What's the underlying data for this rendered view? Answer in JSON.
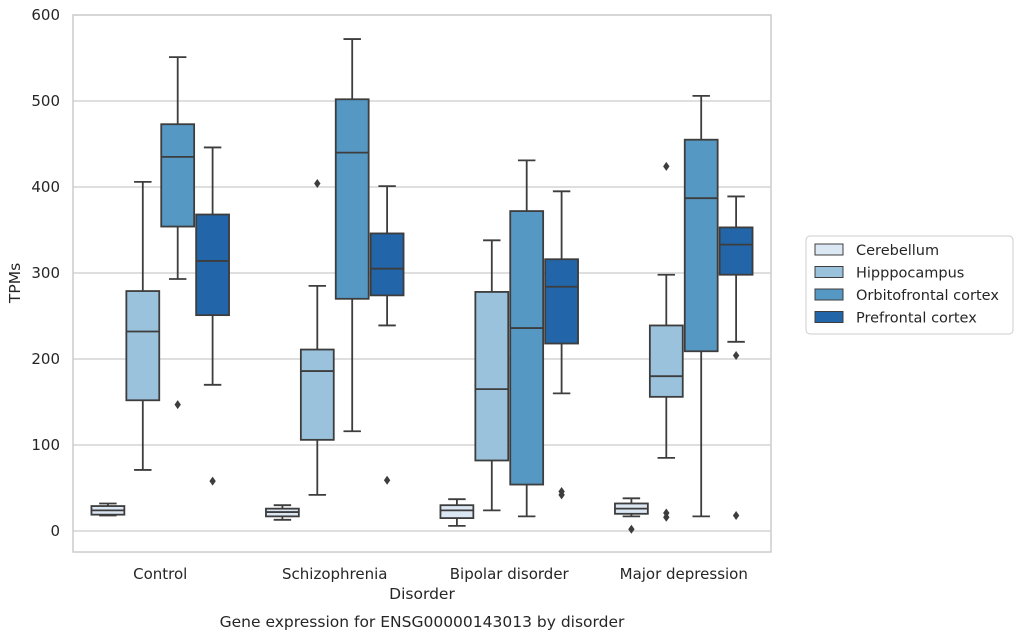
{
  "chart_data": {
    "type": "box",
    "title": "",
    "caption": "Gene expression for ENSG00000143013 by disorder",
    "xlabel": "Disorder",
    "ylabel": "TPMs",
    "ylim": [
      -25,
      600
    ],
    "yticks": [
      0,
      100,
      200,
      300,
      400,
      500,
      600
    ],
    "grid": true,
    "legend_position": "right",
    "categories": [
      "Control",
      "Schizophrenia",
      "Bipolar disorder",
      "Major depression"
    ],
    "series": [
      {
        "name": "Cerebellum",
        "color": "#dbe7f3",
        "boxes": [
          {
            "whisker_low": 18,
            "q1": 19,
            "median": 24,
            "q3": 29,
            "whisker_high": 32,
            "outliers": []
          },
          {
            "whisker_low": 13,
            "q1": 17,
            "median": 22,
            "q3": 26,
            "whisker_high": 30,
            "outliers": []
          },
          {
            "whisker_low": 6,
            "q1": 15,
            "median": 24,
            "q3": 30,
            "whisker_high": 37,
            "outliers": []
          },
          {
            "whisker_low": 17,
            "q1": 20,
            "median": 26,
            "q3": 32,
            "whisker_high": 38,
            "outliers": [
              2
            ]
          }
        ]
      },
      {
        "name": "Hipppocampus",
        "color": "#9ac2dc",
        "boxes": [
          {
            "whisker_low": 71,
            "q1": 152,
            "median": 232,
            "q3": 279,
            "whisker_high": 406,
            "outliers": []
          },
          {
            "whisker_low": 42,
            "q1": 106,
            "median": 186,
            "q3": 211,
            "whisker_high": 285,
            "outliers": [
              404
            ]
          },
          {
            "whisker_low": 24,
            "q1": 82,
            "median": 165,
            "q3": 278,
            "whisker_high": 338,
            "outliers": []
          },
          {
            "whisker_low": 85,
            "q1": 156,
            "median": 180,
            "q3": 239,
            "whisker_high": 298,
            "outliers": [
              16,
              21,
              424
            ]
          }
        ]
      },
      {
        "name": "Orbitofrontal cortex",
        "color": "#5698c4",
        "boxes": [
          {
            "whisker_low": 293,
            "q1": 354,
            "median": 435,
            "q3": 473,
            "whisker_high": 551,
            "outliers": [
              147
            ]
          },
          {
            "whisker_low": 116,
            "q1": 270,
            "median": 440,
            "q3": 502,
            "whisker_high": 572,
            "outliers": []
          },
          {
            "whisker_low": 17,
            "q1": 54,
            "median": 236,
            "q3": 372,
            "whisker_high": 431,
            "outliers": []
          },
          {
            "whisker_low": 17,
            "q1": 209,
            "median": 387,
            "q3": 455,
            "whisker_high": 506,
            "outliers": []
          }
        ]
      },
      {
        "name": "Prefrontal cortex",
        "color": "#2265a8",
        "boxes": [
          {
            "whisker_low": 170,
            "q1": 251,
            "median": 314,
            "q3": 368,
            "whisker_high": 446,
            "outliers": [
              58
            ]
          },
          {
            "whisker_low": 239,
            "q1": 274,
            "median": 305,
            "q3": 346,
            "whisker_high": 401,
            "outliers": [
              59
            ]
          },
          {
            "whisker_low": 160,
            "q1": 218,
            "median": 284,
            "q3": 316,
            "whisker_high": 395,
            "outliers": [
              42,
              46
            ]
          },
          {
            "whisker_low": 220,
            "q1": 298,
            "median": 333,
            "q3": 353,
            "whisker_high": 389,
            "outliers": [
              18,
              204
            ]
          }
        ]
      }
    ]
  }
}
